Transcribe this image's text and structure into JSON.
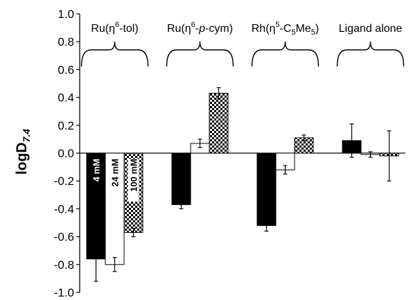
{
  "chart_data": {
    "type": "bar",
    "ylabel": "logD",
    "ylabel_subscript": "7.4",
    "ylim": [
      -1.0,
      1.0
    ],
    "yticks": [
      "1.0",
      "0.8",
      "0.6",
      "0.4",
      "0.2",
      "0.0",
      "-0.2",
      "-0.4",
      "-0.6",
      "-0.8",
      "-1.0"
    ],
    "groups": [
      {
        "label": "Ru(η",
        "sup": "6",
        "rest": "-tol)",
        "rest_italic": "",
        "rest2": ""
      },
      {
        "label": "Ru(η",
        "sup": "6",
        "rest": "-",
        "rest_italic": "p",
        "rest2": "-cym)"
      },
      {
        "label": "Rh(η",
        "sup": "5",
        "rest": "-C",
        "sub": "5",
        "rest3": "Me",
        "sub2": "5",
        "rest4": ")"
      },
      {
        "label": "Ligand alone"
      }
    ],
    "series": [
      {
        "name": "4 mM",
        "fill": "#000000",
        "values": [
          -0.76,
          -0.37,
          -0.52,
          0.09
        ],
        "errors": [
          0.16,
          0.03,
          0.04,
          0.12
        ]
      },
      {
        "name": "24 mM",
        "fill": "#ffffff",
        "values": [
          -0.8,
          0.07,
          -0.12,
          -0.01
        ],
        "errors": [
          0.05,
          0.03,
          0.03,
          0.02
        ]
      },
      {
        "name": "100 mM",
        "fill": "checker",
        "values": [
          -0.57,
          0.43,
          0.11,
          -0.02
        ],
        "errors": [
          0.03,
          0.04,
          0.02,
          0.18
        ]
      }
    ],
    "series_labels_in_bars": true
  }
}
